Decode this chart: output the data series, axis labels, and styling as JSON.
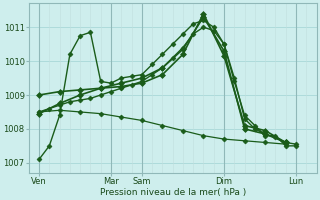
{
  "background_color": "#ceeeed",
  "grid_color_h": "#a8d8d8",
  "grid_color_v": "#c0dede",
  "grid_color_vdark": "#90b8b8",
  "line_color": "#1a5c1a",
  "xlabel": "Pression niveau de la mer( hPa )",
  "ylim": [
    1006.7,
    1011.7
  ],
  "yticks": [
    1007,
    1008,
    1009,
    1010,
    1011
  ],
  "xlim": [
    0,
    28
  ],
  "xtick_labels": [
    "Ven",
    "Mar",
    "Sam",
    "Dim",
    "Lun"
  ],
  "xtick_positions": [
    1,
    8,
    11,
    19,
    26
  ],
  "vline_dark": [
    1,
    8,
    11,
    19,
    26
  ],
  "lines": [
    {
      "x": [
        1,
        2,
        3,
        4,
        5,
        6,
        7,
        8,
        9,
        10,
        11,
        12,
        13,
        14,
        15,
        16,
        17,
        18,
        19,
        20,
        21,
        22,
        23,
        24,
        25,
        26
      ],
      "y": [
        1007.1,
        1007.5,
        1008.4,
        1010.2,
        1010.75,
        1010.85,
        1009.4,
        1009.35,
        1009.5,
        1009.55,
        1009.6,
        1009.9,
        1010.2,
        1010.5,
        1010.8,
        1011.1,
        1011.2,
        1011.0,
        1010.5,
        1009.4,
        1008.4,
        1008.1,
        1007.8,
        1007.8,
        1007.5,
        1007.5
      ],
      "marker": "D",
      "markersize": 2.5,
      "linewidth": 1.0
    },
    {
      "x": [
        1,
        2,
        3,
        4,
        5,
        6,
        7,
        8,
        9,
        10,
        11,
        12,
        13,
        14,
        15,
        16,
        17,
        18,
        19,
        20,
        21,
        22,
        23,
        24,
        25,
        26
      ],
      "y": [
        1008.5,
        1008.6,
        1008.7,
        1008.8,
        1008.85,
        1008.9,
        1009.0,
        1009.1,
        1009.2,
        1009.3,
        1009.4,
        1009.6,
        1009.8,
        1010.1,
        1010.4,
        1010.8,
        1011.0,
        1010.9,
        1010.5,
        1009.5,
        1008.3,
        1008.0,
        1007.85,
        1007.75,
        1007.6,
        1007.55
      ],
      "marker": "D",
      "markersize": 2.5,
      "linewidth": 1.0
    },
    {
      "x": [
        1,
        3,
        5,
        7,
        9,
        11,
        13,
        15,
        17,
        19,
        21,
        23,
        25
      ],
      "y": [
        1008.45,
        1008.75,
        1009.0,
        1009.2,
        1009.35,
        1009.5,
        1009.8,
        1010.35,
        1011.3,
        1010.3,
        1008.0,
        1007.85,
        1007.6
      ],
      "marker": "D",
      "markersize": 3.0,
      "linewidth": 1.2
    },
    {
      "x": [
        1,
        3,
        5,
        7,
        9,
        11,
        13,
        15,
        17,
        19,
        21,
        23,
        25
      ],
      "y": [
        1009.0,
        1009.1,
        1009.15,
        1009.2,
        1009.25,
        1009.35,
        1009.6,
        1010.2,
        1011.4,
        1010.15,
        1008.1,
        1007.95,
        1007.6
      ],
      "marker": "D",
      "markersize": 3.0,
      "linewidth": 1.2
    },
    {
      "x": [
        1,
        3,
        5,
        7,
        9,
        11,
        13,
        15,
        17,
        19,
        21,
        23,
        25
      ],
      "y": [
        1008.5,
        1008.55,
        1008.5,
        1008.45,
        1008.35,
        1008.25,
        1008.1,
        1007.95,
        1007.8,
        1007.7,
        1007.65,
        1007.6,
        1007.55
      ],
      "marker": "D",
      "markersize": 2.5,
      "linewidth": 0.9
    }
  ]
}
